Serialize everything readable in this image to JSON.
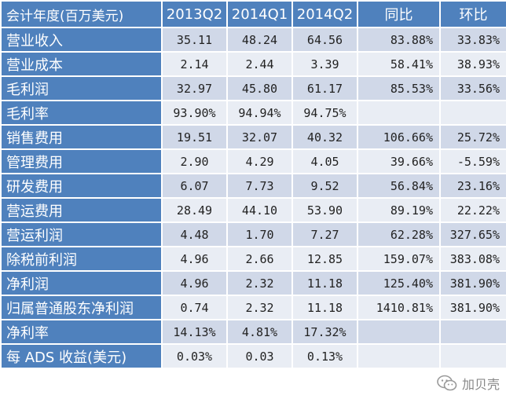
{
  "table": {
    "headers": [
      "会计年度(百万美元)",
      "2013Q2",
      "2014Q1",
      "2014Q2",
      "同比",
      "环比"
    ],
    "rows": [
      [
        "营业收入",
        "35.11",
        "48.24",
        "64.56",
        "83.88%",
        "33.83%"
      ],
      [
        "营业成本",
        "2.14",
        "2.44",
        "3.39",
        "58.41%",
        "38.93%"
      ],
      [
        "毛利润",
        "32.97",
        "45.80",
        "61.17",
        "85.53%",
        "33.56%"
      ],
      [
        "毛利率",
        "93.90%",
        "94.94%",
        "94.75%",
        "",
        ""
      ],
      [
        "销售费用",
        "19.51",
        "32.07",
        "40.32",
        "106.66%",
        "25.72%"
      ],
      [
        "管理费用",
        "2.90",
        "4.29",
        "4.05",
        "39.66%",
        "-5.59%"
      ],
      [
        "研发费用",
        "6.07",
        "7.73",
        "9.52",
        "56.84%",
        "23.16%"
      ],
      [
        "营运费用",
        "28.49",
        "44.10",
        "53.90",
        "89.19%",
        "22.22%"
      ],
      [
        "营运利润",
        "4.48",
        "1.70",
        "7.27",
        "62.28%",
        "327.65%"
      ],
      [
        "除税前利润",
        "4.96",
        "2.66",
        "12.85",
        "159.07%",
        "383.08%"
      ],
      [
        "净利润",
        "4.96",
        "2.32",
        "11.18",
        "125.40%",
        "381.90%"
      ],
      [
        "归属普通股东净利润",
        "0.74",
        "2.32",
        "11.18",
        "1410.81%",
        "381.90%"
      ],
      [
        "净利率",
        "14.13%",
        "4.81%",
        "17.32%",
        "",
        ""
      ],
      [
        "每 ADS 收益(美元)",
        "0.03%",
        "0.03",
        "0.13%",
        "",
        ""
      ]
    ]
  },
  "watermark": {
    "text": "加贝壳",
    "icon": "wechat-icon"
  },
  "colors": {
    "header_bg": "#4f81bd",
    "row_odd": "#d0d8e8",
    "row_even": "#e9edf4"
  }
}
